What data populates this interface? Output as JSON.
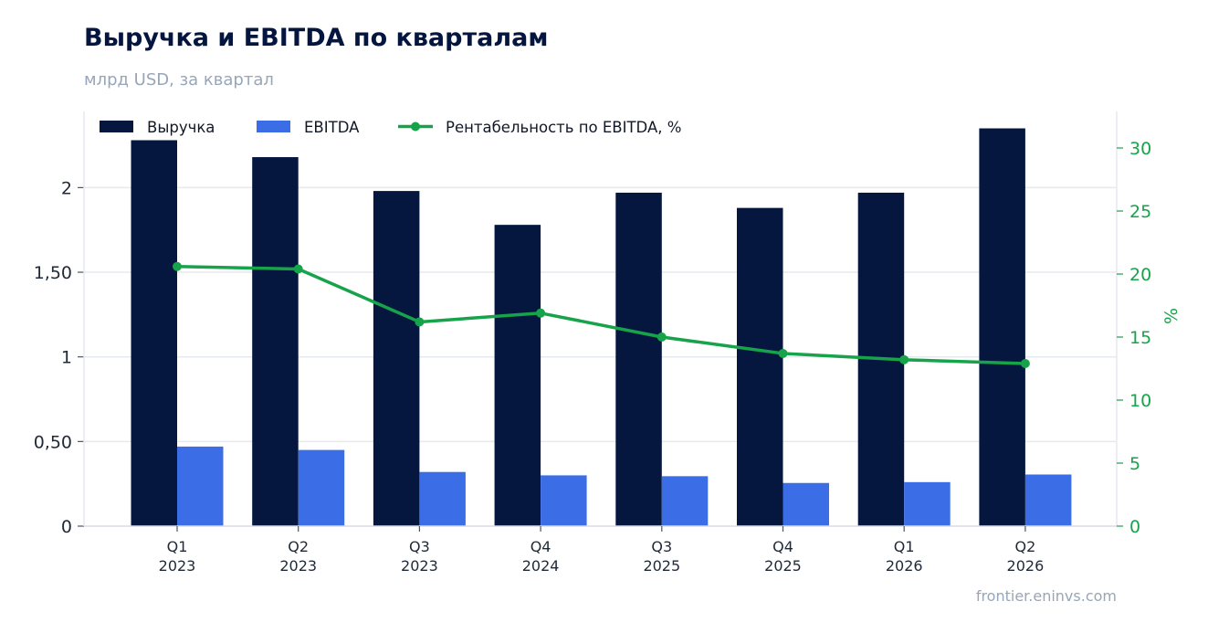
{
  "header": {
    "title": "Выручка и EBITDA по кварталам",
    "subtitle": "млрд USD, за квартал"
  },
  "footer": {
    "source": "frontier.eninvs.com"
  },
  "colors": {
    "revenue": "#05173f",
    "ebitda": "#3b6de6",
    "margin": "#17a34a",
    "grid": "#e5e9f0"
  },
  "chart_data": {
    "type": "bar",
    "categories": [
      [
        "Q1",
        "2023"
      ],
      [
        "Q2",
        "2023"
      ],
      [
        "Q3",
        "2023"
      ],
      [
        "Q4",
        "2024"
      ],
      [
        "Q3",
        "2025"
      ],
      [
        "Q4",
        "2025"
      ],
      [
        "Q1",
        "2026"
      ],
      [
        "Q2",
        "2026"
      ]
    ],
    "series": [
      {
        "name": "Выручка",
        "type": "bar",
        "axis": "left",
        "values": [
          2.28,
          2.18,
          1.98,
          1.78,
          1.97,
          1.88,
          1.97,
          2.35
        ]
      },
      {
        "name": "EBITDA",
        "type": "bar",
        "axis": "left",
        "values": [
          0.47,
          0.45,
          0.32,
          0.3,
          0.295,
          0.255,
          0.26,
          0.305
        ]
      },
      {
        "name": "Рентабельность по EBITDA, %",
        "type": "line",
        "axis": "right",
        "values": [
          20.6,
          20.4,
          16.2,
          16.9,
          15.0,
          13.7,
          13.2,
          12.9
        ]
      }
    ],
    "y_left": {
      "ylim": [
        0,
        2.45
      ],
      "ticks": [
        0,
        0.5,
        1,
        1.5,
        2
      ],
      "tick_labels": [
        "0",
        "0,50",
        "1",
        "1,50",
        "2"
      ]
    },
    "y_right": {
      "label": "%",
      "ylim": [
        0,
        32.9
      ],
      "ticks": [
        0,
        5,
        10,
        15,
        20,
        25,
        30
      ],
      "tick_labels": [
        "0",
        "5",
        "10",
        "15",
        "20",
        "25",
        "30"
      ]
    },
    "grid": true,
    "legend_position": "top-left"
  }
}
